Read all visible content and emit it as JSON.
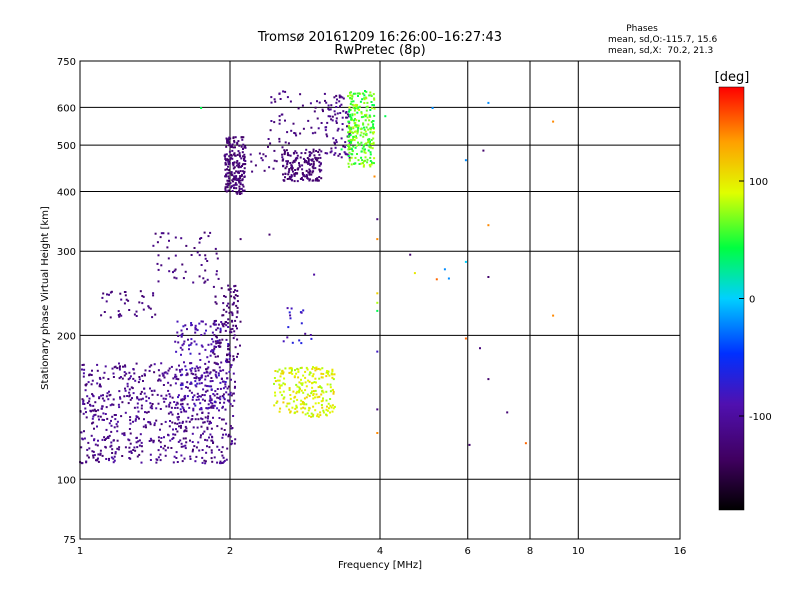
{
  "chart_data": {
    "type": "scatter",
    "title": "Tromsø 20161209 16:26:00–16:27:43",
    "subtitle": "RwPretec (8p)",
    "xlabel": "Frequency [MHz]",
    "ylabel": "Stationary phase Virtual Height [km]",
    "x_scale": "log",
    "y_scale": "log",
    "xlim": [
      1,
      16
    ],
    "ylim": [
      75,
      750
    ],
    "x_ticks": [
      1,
      2,
      4,
      6,
      8,
      10,
      16
    ],
    "y_ticks": [
      75,
      100,
      200,
      300,
      400,
      500,
      600,
      750
    ],
    "grid": true,
    "stats": {
      "heading": "Phases",
      "line1": "mean, sd,O:-115.7, 15.6",
      "line2": "mean, sd,X:  70.2, 21.3"
    },
    "colorbar": {
      "label": "[deg]",
      "ticks": [
        100,
        0,
        -100
      ],
      "range": [
        -180,
        180
      ]
    },
    "clusters": [
      {
        "x": [
          1.0,
          2.05
        ],
        "y": [
          108,
          175
        ],
        "phase": [
          -130,
          -95
        ],
        "n": 700
      },
      {
        "x": [
          1.55,
          2.0
        ],
        "y": [
          140,
          215
        ],
        "phase": [
          -110,
          -75
        ],
        "n": 180
      },
      {
        "x": [
          1.85,
          2.1
        ],
        "y": [
          175,
          255
        ],
        "phase": [
          -135,
          -115
        ],
        "n": 110
      },
      {
        "x": [
          1.1,
          1.42
        ],
        "y": [
          218,
          248
        ],
        "phase": [
          -130,
          -110
        ],
        "n": 40
      },
      {
        "x": [
          1.4,
          1.9
        ],
        "y": [
          255,
          330
        ],
        "phase": [
          -130,
          -110
        ],
        "n": 55
      },
      {
        "x": [
          2.45,
          3.25
        ],
        "y": [
          135,
          172
        ],
        "phase": [
          75,
          115
        ],
        "n": 230
      },
      {
        "x": [
          2.55,
          2.95
        ],
        "y": [
          188,
          230
        ],
        "phase": [
          -110,
          -60
        ],
        "n": 18
      },
      {
        "x": [
          1.95,
          2.15
        ],
        "y": [
          395,
          520
        ],
        "phase": [
          -135,
          -115
        ],
        "n": 200
      },
      {
        "x": [
          2.55,
          3.05
        ],
        "y": [
          420,
          490
        ],
        "phase": [
          -135,
          -115
        ],
        "n": 170
      },
      {
        "x": [
          2.2,
          2.7
        ],
        "y": [
          440,
          520
        ],
        "phase": [
          -130,
          -110
        ],
        "n": 25
      },
      {
        "x": [
          2.4,
          3.1
        ],
        "y": [
          520,
          650
        ],
        "phase": [
          -130,
          -105
        ],
        "n": 45
      },
      {
        "x": [
          3.1,
          3.5
        ],
        "y": [
          470,
          650
        ],
        "phase": [
          -130,
          -100
        ],
        "n": 90
      },
      {
        "x": [
          3.45,
          3.9
        ],
        "y": [
          450,
          650
        ],
        "phase": [
          40,
          85
        ],
        "n": 260
      }
    ],
    "points": [
      {
        "x": 3.95,
        "y": 350,
        "phase": -120
      },
      {
        "x": 3.95,
        "y": 318,
        "phase": 140
      },
      {
        "x": 3.95,
        "y": 245,
        "phase": 110
      },
      {
        "x": 3.95,
        "y": 234,
        "phase": 80
      },
      {
        "x": 3.95,
        "y": 225,
        "phase": 40
      },
      {
        "x": 3.95,
        "y": 185,
        "phase": -80
      },
      {
        "x": 3.95,
        "y": 140,
        "phase": -120
      },
      {
        "x": 3.95,
        "y": 125,
        "phase": 140
      },
      {
        "x": 3.9,
        "y": 430,
        "phase": 140
      },
      {
        "x": 4.6,
        "y": 295,
        "phase": -130
      },
      {
        "x": 4.7,
        "y": 270,
        "phase": 100
      },
      {
        "x": 5.2,
        "y": 262,
        "phase": 150
      },
      {
        "x": 5.4,
        "y": 275,
        "phase": -20
      },
      {
        "x": 5.5,
        "y": 263,
        "phase": -20
      },
      {
        "x": 5.95,
        "y": 285,
        "phase": 0
      },
      {
        "x": 5.95,
        "y": 197,
        "phase": 150
      },
      {
        "x": 5.95,
        "y": 465,
        "phase": -20
      },
      {
        "x": 6.05,
        "y": 118,
        "phase": -130
      },
      {
        "x": 6.35,
        "y": 188,
        "phase": -120
      },
      {
        "x": 6.45,
        "y": 487,
        "phase": -130
      },
      {
        "x": 6.6,
        "y": 340,
        "phase": 140
      },
      {
        "x": 6.6,
        "y": 265,
        "phase": -130
      },
      {
        "x": 6.6,
        "y": 162,
        "phase": -130
      },
      {
        "x": 6.6,
        "y": 613,
        "phase": -20
      },
      {
        "x": 7.2,
        "y": 138,
        "phase": -125
      },
      {
        "x": 7.85,
        "y": 119,
        "phase": 150
      },
      {
        "x": 8.9,
        "y": 560,
        "phase": 140
      },
      {
        "x": 8.9,
        "y": 220,
        "phase": 140
      },
      {
        "x": 5.1,
        "y": 598,
        "phase": -20
      },
      {
        "x": 1.75,
        "y": 598,
        "phase": 40
      },
      {
        "x": 4.1,
        "y": 575,
        "phase": 40
      },
      {
        "x": 3.35,
        "y": 490,
        "phase": 40
      },
      {
        "x": 2.1,
        "y": 318,
        "phase": -130
      },
      {
        "x": 2.4,
        "y": 325,
        "phase": -130
      },
      {
        "x": 2.95,
        "y": 268,
        "phase": -100
      }
    ]
  }
}
